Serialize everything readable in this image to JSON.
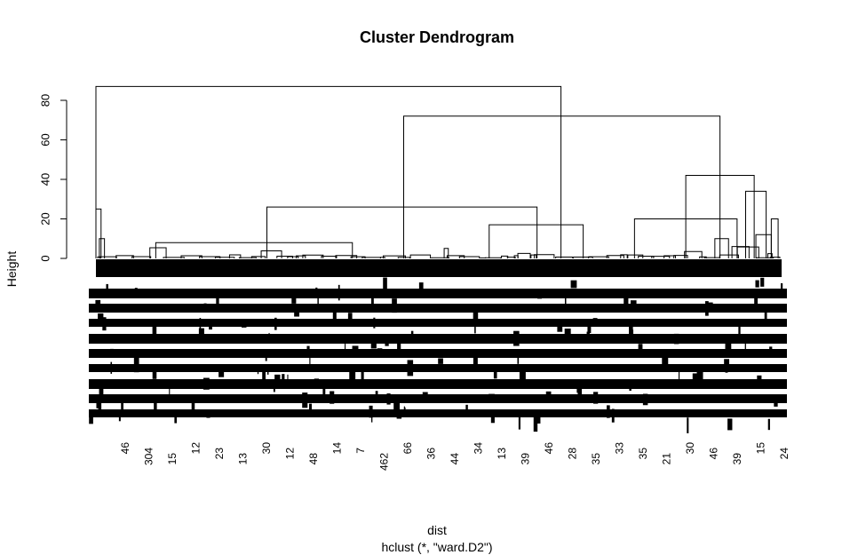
{
  "chart_data": {
    "type": "dendrogram",
    "title": "Cluster Dendrogram",
    "xlabel": "dist",
    "sublabel": "hclust (*, \"ward.D2\")",
    "ylabel": "Height",
    "yticks": [
      0,
      20,
      40,
      60,
      80
    ],
    "ylim": [
      0,
      88
    ],
    "line_color": "#000000",
    "merges": [
      {
        "height": 87,
        "left": 0,
        "right": 2.72
      },
      {
        "height": 72,
        "left": 1.8,
        "right": 3.65
      },
      {
        "height": 26,
        "left": 1,
        "right": 2.58
      },
      {
        "height": 42,
        "left": 3.45,
        "right": 3.85
      },
      {
        "height": 8,
        "left": 0.35,
        "right": 1.5
      },
      {
        "height": 17,
        "left": 2.3,
        "right": 2.85
      },
      {
        "height": 20,
        "left": 3.15,
        "right": 3.75
      },
      {
        "height": 34,
        "left": 3.8,
        "right": 3.92
      }
    ],
    "leaf_labels_sample": [
      "46",
      "304",
      "15",
      "12",
      "23",
      "13",
      "30",
      "12",
      "48",
      "14",
      "7",
      "462",
      "66",
      "36",
      "44",
      "34",
      "13",
      "39",
      "46",
      "28",
      "35",
      "33",
      "35",
      "21",
      "30",
      "46",
      "39",
      "15",
      "24"
    ]
  }
}
